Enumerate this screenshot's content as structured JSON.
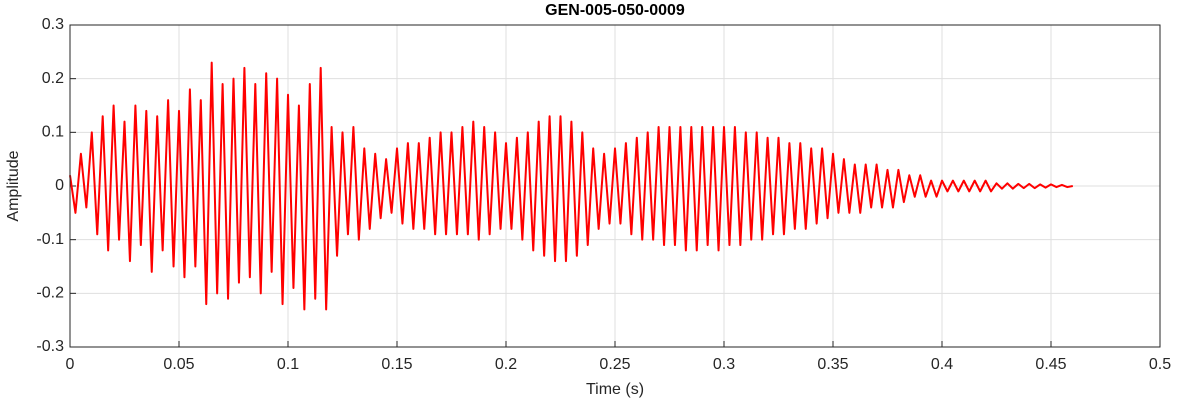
{
  "chart_data": {
    "type": "line",
    "title": "GEN-005-050-0009",
    "x_label": "Time (s)",
    "y_label": "Amplitude",
    "xlim": [
      0,
      0.5
    ],
    "xticks": [
      0,
      0.05,
      0.1,
      0.15,
      0.2,
      0.25,
      0.3,
      0.35,
      0.4,
      0.45,
      0.5
    ],
    "ylim": [
      -0.3,
      0.3
    ],
    "yticks": [
      0.3,
      0.2,
      0.1,
      0,
      -0.1,
      -0.2,
      -0.3
    ],
    "grid": true,
    "series": [
      {
        "color": "#ff0000",
        "x": [
          0,
          0.0025,
          0.005,
          0.0075,
          0.01,
          0.0125,
          0.015,
          0.0175,
          0.02,
          0.0225,
          0.025,
          0.0275,
          0.03,
          0.0325,
          0.035,
          0.0375,
          0.04,
          0.0425,
          0.045,
          0.0475,
          0.05,
          0.0525,
          0.055,
          0.0575,
          0.06,
          0.0625,
          0.065,
          0.0675,
          0.07,
          0.0725,
          0.075,
          0.0775,
          0.08,
          0.0825,
          0.085,
          0.0875,
          0.09,
          0.0925,
          0.095,
          0.0975,
          0.1,
          0.1025,
          0.105,
          0.1075,
          0.11,
          0.1125,
          0.115,
          0.1175,
          0.12,
          0.1225,
          0.125,
          0.1275,
          0.13,
          0.1325,
          0.135,
          0.1375,
          0.14,
          0.1425,
          0.145,
          0.1475,
          0.15,
          0.1525,
          0.155,
          0.1575,
          0.16,
          0.1625,
          0.165,
          0.1675,
          0.17,
          0.1725,
          0.175,
          0.1775,
          0.18,
          0.1825,
          0.185,
          0.1875,
          0.19,
          0.1925,
          0.195,
          0.1975,
          0.2,
          0.2025,
          0.205,
          0.2075,
          0.21,
          0.2125,
          0.215,
          0.2175,
          0.22,
          0.2225,
          0.225,
          0.2275,
          0.23,
          0.2325,
          0.235,
          0.2375,
          0.24,
          0.2425,
          0.245,
          0.2475,
          0.25,
          0.2525,
          0.255,
          0.2575,
          0.26,
          0.2625,
          0.265,
          0.2675,
          0.27,
          0.2725,
          0.275,
          0.2775,
          0.28,
          0.2825,
          0.285,
          0.2875,
          0.29,
          0.2925,
          0.295,
          0.2975,
          0.3,
          0.3025,
          0.305,
          0.3075,
          0.31,
          0.3125,
          0.315,
          0.3175,
          0.32,
          0.3225,
          0.325,
          0.3275,
          0.33,
          0.3325,
          0.335,
          0.3375,
          0.34,
          0.3425,
          0.345,
          0.3475,
          0.35,
          0.3525,
          0.355,
          0.3575,
          0.36,
          0.3625,
          0.365,
          0.3675,
          0.37,
          0.3725,
          0.375,
          0.3775,
          0.38,
          0.3825,
          0.385,
          0.3875,
          0.39,
          0.3925,
          0.395,
          0.3975,
          0.4,
          0.4025,
          0.405,
          0.4075,
          0.41,
          0.4125,
          0.415,
          0.4175,
          0.42,
          0.4225,
          0.425,
          0.4275,
          0.43,
          0.4325,
          0.435,
          0.4375,
          0.44,
          0.4425,
          0.445,
          0.4475,
          0.45,
          0.4525,
          0.455,
          0.4575,
          0.46
        ],
        "values": [
          0.02,
          -0.05,
          0.06,
          -0.04,
          0.1,
          -0.09,
          0.13,
          -0.12,
          0.15,
          -0.1,
          0.12,
          -0.14,
          0.15,
          -0.11,
          0.14,
          -0.16,
          0.13,
          -0.12,
          0.16,
          -0.15,
          0.14,
          -0.17,
          0.18,
          -0.15,
          0.16,
          -0.22,
          0.23,
          -0.2,
          0.19,
          -0.21,
          0.2,
          -0.18,
          0.22,
          -0.17,
          0.19,
          -0.2,
          0.21,
          -0.16,
          0.2,
          -0.22,
          0.17,
          -0.19,
          0.15,
          -0.23,
          0.19,
          -0.21,
          0.22,
          -0.23,
          0.11,
          -0.13,
          0.1,
          -0.09,
          0.11,
          -0.1,
          0.07,
          -0.08,
          0.06,
          -0.06,
          0.05,
          -0.05,
          0.07,
          -0.07,
          0.08,
          -0.08,
          0.08,
          -0.08,
          0.09,
          -0.09,
          0.1,
          -0.09,
          0.1,
          -0.09,
          0.11,
          -0.09,
          0.12,
          -0.1,
          0.11,
          -0.09,
          0.1,
          -0.08,
          0.08,
          -0.08,
          0.09,
          -0.1,
          0.1,
          -0.12,
          0.12,
          -0.13,
          0.13,
          -0.14,
          0.13,
          -0.14,
          0.12,
          -0.13,
          0.1,
          -0.11,
          0.07,
          -0.08,
          0.06,
          -0.07,
          0.07,
          -0.07,
          0.08,
          -0.09,
          0.09,
          -0.1,
          0.1,
          -0.1,
          0.11,
          -0.11,
          0.11,
          -0.11,
          0.11,
          -0.12,
          0.11,
          -0.12,
          0.11,
          -0.11,
          0.11,
          -0.12,
          0.11,
          -0.11,
          0.11,
          -0.11,
          0.1,
          -0.1,
          0.1,
          -0.1,
          0.09,
          -0.09,
          0.09,
          -0.09,
          0.08,
          -0.08,
          0.08,
          -0.08,
          0.07,
          -0.07,
          0.07,
          -0.06,
          0.06,
          -0.05,
          0.05,
          -0.05,
          0.04,
          -0.05,
          0.04,
          -0.04,
          0.04,
          -0.04,
          0.03,
          -0.04,
          0.03,
          -0.03,
          0.02,
          -0.02,
          0.02,
          -0.02,
          0.01,
          -0.02,
          0.01,
          -0.01,
          0.01,
          -0.01,
          0.01,
          -0.01,
          0.01,
          -0.01,
          0.01,
          -0.01,
          0.005,
          -0.005,
          0.005,
          -0.005,
          0.004,
          -0.004,
          0.004,
          -0.004,
          0.003,
          -0.003,
          0.003,
          -0.002,
          0.002,
          -0.002,
          0
        ]
      }
    ]
  }
}
